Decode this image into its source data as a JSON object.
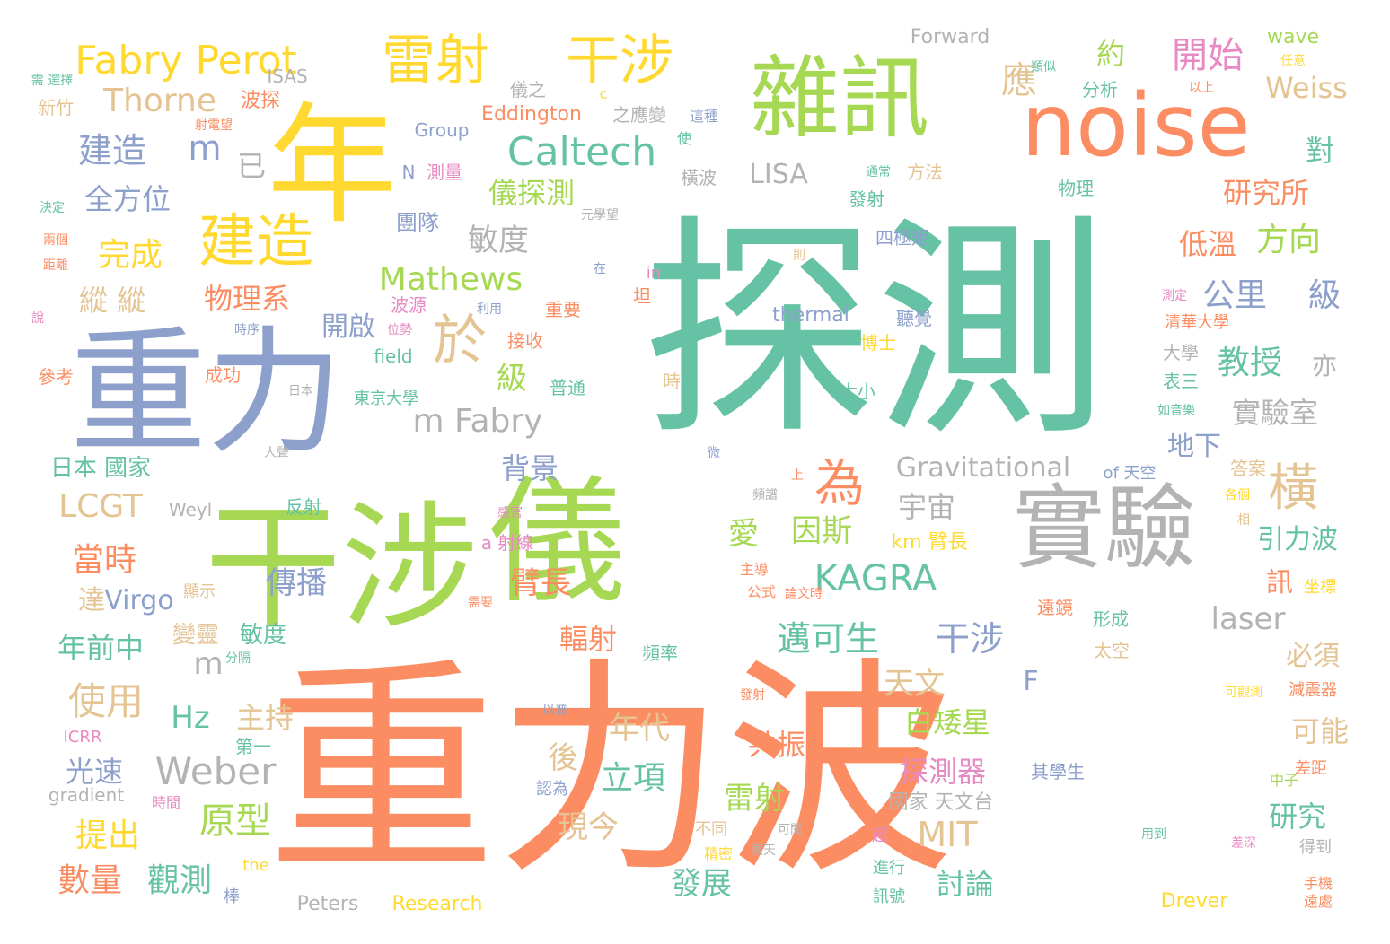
{
  "colors": {
    "background": "#ffffff",
    "orange": "#fc8d62",
    "teal": "#66c2a5",
    "blue": "#8da0cb",
    "green": "#a6d854",
    "yellow": "#ffd92f",
    "pink": "#e78ac3",
    "tan": "#e5c494",
    "gray": "#b3b3b3"
  },
  "words": [
    {
      "text": "重力波",
      "color": "orange"
    },
    {
      "text": "探測",
      "color": "teal"
    },
    {
      "text": "重力",
      "color": "blue"
    },
    {
      "text": "干涉",
      "color": "green"
    },
    {
      "text": "儀",
      "color": "green"
    },
    {
      "text": "年",
      "color": "yellow"
    },
    {
      "text": "noise",
      "color": "orange"
    },
    {
      "text": "雜訊",
      "color": "green"
    },
    {
      "text": "實驗",
      "color": "gray"
    },
    {
      "text": "雷射",
      "color": "yellow"
    },
    {
      "text": "干涉",
      "color": "yellow"
    },
    {
      "text": "Fabry Perot",
      "color": "yellow"
    },
    {
      "text": "建造",
      "color": "yellow"
    },
    {
      "text": "於",
      "color": "tan"
    },
    {
      "text": "為",
      "color": "orange"
    },
    {
      "text": "橫",
      "color": "tan"
    },
    {
      "text": "Caltech",
      "color": "teal"
    },
    {
      "text": "m Fabry",
      "color": "gray"
    },
    {
      "text": "KAGRA",
      "color": "teal"
    },
    {
      "text": "Weber",
      "color": "gray"
    },
    {
      "text": "邁可生",
      "color": "teal"
    },
    {
      "text": "干涉",
      "color": "blue"
    },
    {
      "text": "建造",
      "color": "blue"
    },
    {
      "text": "m",
      "color": "blue"
    },
    {
      "text": "已",
      "color": "gray"
    },
    {
      "text": "Thorne",
      "color": "tan"
    },
    {
      "text": "全方位",
      "color": "blue"
    },
    {
      "text": "完成",
      "color": "yellow"
    },
    {
      "text": "縱 縱",
      "color": "tan"
    },
    {
      "text": "物理系",
      "color": "orange"
    },
    {
      "text": "Mathews",
      "color": "green"
    },
    {
      "text": "儀探測",
      "color": "green"
    },
    {
      "text": "敏度",
      "color": "gray"
    },
    {
      "text": "開始",
      "color": "pink"
    },
    {
      "text": "應",
      "color": "tan"
    },
    {
      "text": "約",
      "color": "green"
    },
    {
      "text": "Weiss",
      "color": "tan"
    },
    {
      "text": "研究所",
      "color": "orange"
    },
    {
      "text": "方向",
      "color": "green"
    },
    {
      "text": "低溫",
      "color": "orange"
    },
    {
      "text": "公里",
      "color": "blue"
    },
    {
      "text": "級",
      "color": "blue"
    },
    {
      "text": "教授",
      "color": "teal"
    },
    {
      "text": "亦",
      "color": "gray"
    },
    {
      "text": "實驗室",
      "color": "gray"
    },
    {
      "text": "對",
      "color": "teal"
    },
    {
      "text": "LISA",
      "color": "gray"
    },
    {
      "text": "Gravitational",
      "color": "gray"
    },
    {
      "text": "宇宙",
      "color": "gray"
    },
    {
      "text": "愛",
      "color": "green"
    },
    {
      "text": "因斯",
      "color": "green"
    },
    {
      "text": "LCGT",
      "color": "tan"
    },
    {
      "text": "當時",
      "color": "orange"
    },
    {
      "text": "日本 國家",
      "color": "teal"
    },
    {
      "text": "級",
      "color": "green"
    },
    {
      "text": "背景",
      "color": "blue"
    },
    {
      "text": "開啟",
      "color": "blue"
    },
    {
      "text": "傳播",
      "color": "blue"
    },
    {
      "text": "臂長",
      "color": "orange"
    },
    {
      "text": "Virgo",
      "color": "blue"
    },
    {
      "text": "年前中",
      "color": "teal"
    },
    {
      "text": "使用",
      "color": "tan"
    },
    {
      "text": "Hz",
      "color": "teal"
    },
    {
      "text": "主持",
      "color": "tan"
    },
    {
      "text": "光速",
      "color": "blue"
    },
    {
      "text": "原型",
      "color": "green"
    },
    {
      "text": "提出",
      "color": "yellow"
    },
    {
      "text": "數量",
      "color": "orange"
    },
    {
      "text": "觀測",
      "color": "teal"
    },
    {
      "text": "立項",
      "color": "teal"
    },
    {
      "text": "年代",
      "color": "tan"
    },
    {
      "text": "共振",
      "color": "orange"
    },
    {
      "text": "後",
      "color": "tan"
    },
    {
      "text": "現今",
      "color": "tan"
    },
    {
      "text": "雷射",
      "color": "green"
    },
    {
      "text": "發展",
      "color": "teal"
    },
    {
      "text": "MIT",
      "color": "tan"
    },
    {
      "text": "討論",
      "color": "teal"
    },
    {
      "text": "探測器",
      "color": "pink"
    },
    {
      "text": "白矮星",
      "color": "green"
    },
    {
      "text": "天文",
      "color": "tan"
    },
    {
      "text": "輻射",
      "color": "orange"
    },
    {
      "text": "laser",
      "color": "gray"
    },
    {
      "text": "必須",
      "color": "tan"
    },
    {
      "text": "引力波",
      "color": "teal"
    },
    {
      "text": "可能",
      "color": "tan"
    },
    {
      "text": "研究",
      "color": "teal"
    },
    {
      "text": "地下",
      "color": "blue"
    },
    {
      "text": "訊",
      "color": "orange"
    },
    {
      "text": "m",
      "color": "gray"
    },
    {
      "text": "F",
      "color": "blue"
    },
    {
      "text": "km 臂長",
      "color": "yellow"
    },
    {
      "text": "敏度",
      "color": "teal"
    },
    {
      "text": "變靈",
      "color": "tan"
    },
    {
      "text": "達",
      "color": "tan"
    },
    {
      "text": "Forward",
      "color": "gray"
    },
    {
      "text": "wave",
      "color": "green"
    },
    {
      "text": "分析",
      "color": "teal"
    },
    {
      "text": "Eddington",
      "color": "orange"
    },
    {
      "text": "Group",
      "color": "blue"
    },
    {
      "text": "儀之",
      "color": "gray"
    },
    {
      "text": "之應變",
      "color": "gray"
    },
    {
      "text": "ISAS",
      "color": "gray"
    },
    {
      "text": "波探",
      "color": "orange"
    },
    {
      "text": "新竹",
      "color": "tan"
    },
    {
      "text": "N",
      "color": "blue"
    },
    {
      "text": "測量",
      "color": "pink"
    },
    {
      "text": "團隊",
      "color": "blue"
    },
    {
      "text": "方法",
      "color": "tan"
    },
    {
      "text": "發射",
      "color": "teal"
    },
    {
      "text": "四極矩",
      "color": "blue"
    },
    {
      "text": "物理",
      "color": "teal"
    },
    {
      "text": "橫波",
      "color": "gray"
    },
    {
      "text": "thermal",
      "color": "blue"
    },
    {
      "text": "聽覺",
      "color": "blue"
    },
    {
      "text": "清華大學",
      "color": "orange"
    },
    {
      "text": "重要",
      "color": "orange"
    },
    {
      "text": "波源",
      "color": "pink"
    },
    {
      "text": "接收",
      "color": "orange"
    },
    {
      "text": "field",
      "color": "teal"
    },
    {
      "text": "博士",
      "color": "yellow"
    },
    {
      "text": "成功",
      "color": "orange"
    },
    {
      "text": "東京大學",
      "color": "teal"
    },
    {
      "text": "普通",
      "color": "teal"
    },
    {
      "text": "時",
      "color": "tan"
    },
    {
      "text": "大小",
      "color": "teal"
    },
    {
      "text": "大學",
      "color": "gray"
    },
    {
      "text": "表三",
      "color": "teal"
    },
    {
      "text": "參考",
      "color": "orange"
    },
    {
      "text": "答案",
      "color": "tan"
    },
    {
      "text": "Weyl",
      "color": "gray"
    },
    {
      "text": "反射",
      "color": "teal"
    },
    {
      "text": "a 射線",
      "color": "pink"
    },
    {
      "text": "顯示",
      "color": "tan"
    },
    {
      "text": "主導",
      "color": "orange"
    },
    {
      "text": "公式",
      "color": "orange"
    },
    {
      "text": "遠鏡",
      "color": "orange"
    },
    {
      "text": "形成",
      "color": "teal"
    },
    {
      "text": "坐標",
      "color": "yellow"
    },
    {
      "text": "太空",
      "color": "tan"
    },
    {
      "text": "頻率",
      "color": "teal"
    },
    {
      "text": "減震器",
      "color": "orange"
    },
    {
      "text": "of 天空",
      "color": "blue"
    },
    {
      "text": "ICRR",
      "color": "pink"
    },
    {
      "text": "gradient",
      "color": "gray"
    },
    {
      "text": "時間",
      "color": "pink"
    },
    {
      "text": "第一",
      "color": "teal"
    },
    {
      "text": "認為",
      "color": "blue"
    },
    {
      "text": "國家 天文台",
      "color": "gray"
    },
    {
      "text": "其學生",
      "color": "blue"
    },
    {
      "text": "差距",
      "color": "orange"
    },
    {
      "text": "中子",
      "color": "green"
    },
    {
      "text": "不同",
      "color": "tan"
    },
    {
      "text": "精密",
      "color": "yellow"
    },
    {
      "text": "超",
      "color": "pink"
    },
    {
      "text": "進行",
      "color": "teal"
    },
    {
      "text": "訊號",
      "color": "teal"
    },
    {
      "text": "the",
      "color": "yellow"
    },
    {
      "text": "Peters",
      "color": "gray"
    },
    {
      "text": "Research",
      "color": "yellow"
    },
    {
      "text": "Drever",
      "color": "yellow"
    },
    {
      "text": "用到",
      "color": "teal"
    },
    {
      "text": "得到",
      "color": "gray"
    },
    {
      "text": "手機",
      "color": "orange"
    },
    {
      "text": "遠處",
      "color": "orange"
    },
    {
      "text": "棒",
      "color": "blue"
    },
    {
      "text": "在",
      "color": "blue"
    },
    {
      "text": "坦",
      "color": "orange"
    },
    {
      "text": "in",
      "color": "pink"
    },
    {
      "text": "c",
      "color": "yellow"
    },
    {
      "text": "這種",
      "color": "blue"
    },
    {
      "text": "使",
      "color": "teal"
    },
    {
      "text": "通常",
      "color": "teal"
    },
    {
      "text": "類似",
      "color": "teal"
    },
    {
      "text": "以上",
      "color": "orange"
    },
    {
      "text": "任意",
      "color": "yellow"
    },
    {
      "text": "需 選擇",
      "color": "teal"
    },
    {
      "text": "射電望",
      "color": "orange"
    },
    {
      "text": "決定",
      "color": "teal"
    },
    {
      "text": "兩個",
      "color": "orange"
    },
    {
      "text": "距離",
      "color": "orange"
    },
    {
      "text": "說",
      "color": "pink"
    },
    {
      "text": "時序",
      "color": "blue"
    },
    {
      "text": "位勢",
      "color": "pink"
    },
    {
      "text": "利用",
      "color": "blue"
    },
    {
      "text": "日本",
      "color": "gray"
    },
    {
      "text": "人聲",
      "color": "gray"
    },
    {
      "text": "微",
      "color": "blue"
    },
    {
      "text": "頻譜",
      "color": "gray"
    },
    {
      "text": "感官",
      "color": "pink"
    },
    {
      "text": "上",
      "color": "orange"
    },
    {
      "text": "需要",
      "color": "orange"
    },
    {
      "text": "論文時",
      "color": "orange"
    },
    {
      "text": "以普",
      "color": "blue"
    },
    {
      "text": "發射",
      "color": "orange"
    },
    {
      "text": "可觀測",
      "color": "yellow"
    },
    {
      "text": "測定",
      "color": "pink"
    },
    {
      "text": "如音樂",
      "color": "teal"
    },
    {
      "text": "各個",
      "color": "yellow"
    },
    {
      "text": "相",
      "color": "tan"
    },
    {
      "text": "元學望",
      "color": "gray"
    },
    {
      "text": "則",
      "color": "tan"
    },
    {
      "text": "分隔",
      "color": "teal"
    },
    {
      "text": "可聞",
      "color": "gray"
    },
    {
      "text": "寬天",
      "color": "gray"
    },
    {
      "text": "差深",
      "color": "pink"
    }
  ]
}
